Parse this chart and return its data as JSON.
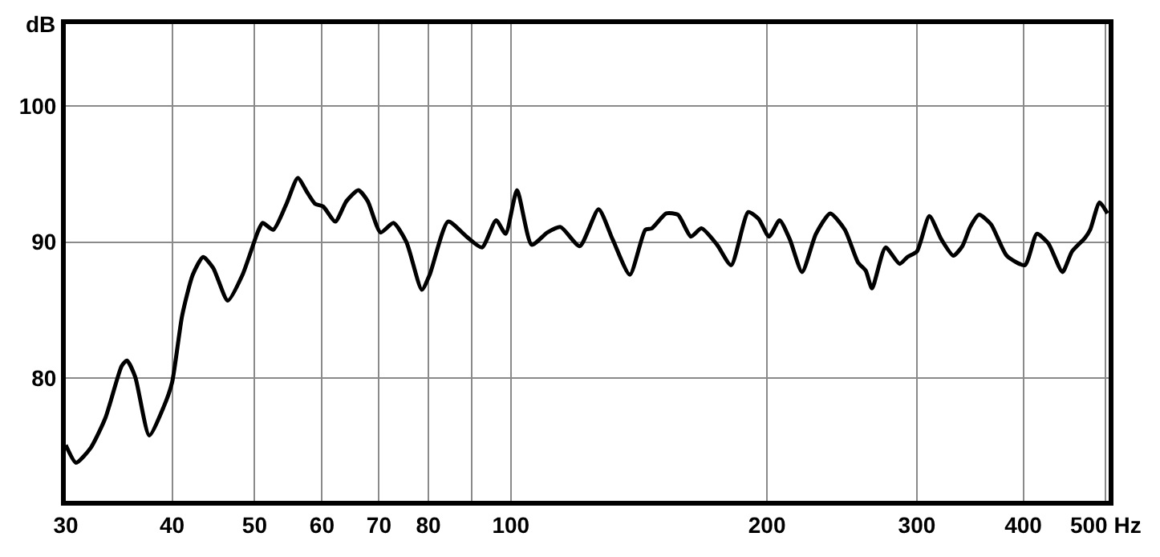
{
  "chart_data": {
    "type": "line",
    "ylabel": "dB",
    "x": [
      30,
      30.85,
      32.1,
      33.4,
      34.9,
      35.4,
      36.2,
      37.6,
      39.1,
      40.0,
      41.1,
      42.3,
      43.5,
      44.7,
      46.5,
      48.4,
      50.4,
      51.1,
      52.6,
      54.5,
      56.2,
      57.7,
      58.9,
      60.2,
      62.2,
      64.1,
      66.2,
      67.9,
      70.3,
      72.8,
      75.4,
      78.6,
      80.3,
      84.4,
      88.7,
      92.5,
      96.1,
      98.6,
      101.7,
      105.8,
      110.4,
      114.4,
      120.5,
      126.8,
      131.7,
      138.0,
      143.9,
      146.4,
      152.3,
      157.2,
      162.8,
      167.5,
      174.7,
      181.5,
      190.1,
      195.5,
      201.1,
      206.9,
      212.7,
      219.9,
      228.3,
      237.3,
      246.9,
      255.8,
      261.2,
      265.7,
      275.6,
      286.3,
      292.4,
      300,
      310.3,
      320.5,
      331.1,
      339.3,
      346.5,
      354.9,
      366.6,
      382.5,
      401.8,
      415.0,
      428.1,
      444.8,
      456.4,
      472.7,
      479.4,
      491.8,
      502.3
    ],
    "series": [
      {
        "color": "#000000",
        "values": [
          75.1,
          73.8,
          74.9,
          77.1,
          80.9,
          81.3,
          80.1,
          75.8,
          77.9,
          79.7,
          84.6,
          87.6,
          88.9,
          88.1,
          85.7,
          87.6,
          90.7,
          91.4,
          90.9,
          92.8,
          94.7,
          93.6,
          92.8,
          92.6,
          91.5,
          93.0,
          93.8,
          93.0,
          90.7,
          91.4,
          90.0,
          86.5,
          87.6,
          91.5,
          90.4,
          89.6,
          91.6,
          90.6,
          93.8,
          89.8,
          90.7,
          91.1,
          89.7,
          92.4,
          90.2,
          87.6,
          90.9,
          91.0,
          92.1,
          92.0,
          90.4,
          91.0,
          89.8,
          88.3,
          92.2,
          91.7,
          90.4,
          91.6,
          90.2,
          87.8,
          90.6,
          92.1,
          90.9,
          88.5,
          87.9,
          86.6,
          89.6,
          88.4,
          88.9,
          89.3,
          91.9,
          90.2,
          89.0,
          89.7,
          91.1,
          92.0,
          91.3,
          89.0,
          88.3,
          90.6,
          89.9,
          87.8,
          89.3,
          90.3,
          90.9,
          92.9,
          92.1
        ]
      }
    ],
    "log": "x",
    "xlim": [
      30,
      504
    ],
    "ylim": [
      71,
      106
    ],
    "xticks": [
      30,
      40,
      50,
      60,
      70,
      80,
      {
        "value": 90,
        "label": null
      },
      100,
      200,
      300,
      400,
      {
        "value": 500,
        "label": "500 Hz"
      }
    ],
    "yticks": [
      80,
      90,
      100
    ],
    "grid": true,
    "legend": false,
    "marker": "none",
    "line_style": "solid"
  }
}
